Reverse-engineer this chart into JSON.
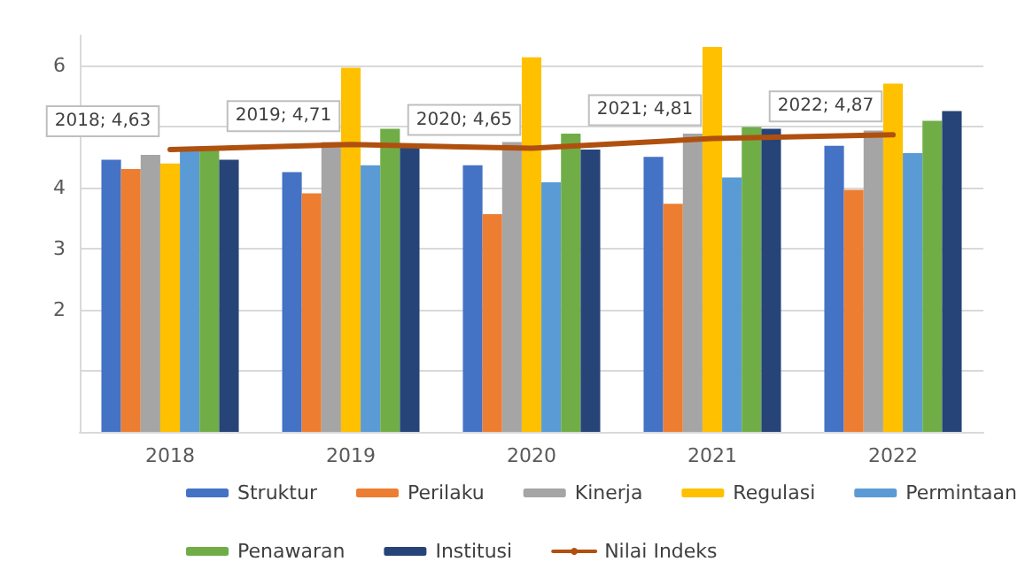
{
  "chart_data": {
    "type": "bar",
    "categories": [
      "2018",
      "2019",
      "2020",
      "2021",
      "2022"
    ],
    "series": [
      {
        "name": "Struktur",
        "color": "#4472c4",
        "values": [
          4.46,
          4.26,
          4.37,
          4.51,
          4.69
        ]
      },
      {
        "name": "Perilaku",
        "color": "#ed7d31",
        "values": [
          4.31,
          3.91,
          3.57,
          3.74,
          3.97
        ]
      },
      {
        "name": "Kinerja",
        "color": "#a5a5a5",
        "values": [
          4.54,
          4.75,
          4.75,
          4.89,
          4.94
        ]
      },
      {
        "name": "Regulasi",
        "color": "#ffc000",
        "values": [
          4.4,
          5.97,
          6.14,
          6.31,
          5.71
        ]
      },
      {
        "name": "Permintaan",
        "color": "#5b9bd5",
        "values": [
          4.65,
          4.37,
          4.09,
          4.17,
          4.57
        ]
      },
      {
        "name": "Penawaran",
        "color": "#70ad47",
        "values": [
          4.65,
          4.97,
          4.89,
          5.0,
          5.1
        ]
      },
      {
        "name": "Institusi",
        "color": "#264478",
        "values": [
          4.46,
          4.69,
          4.63,
          4.97,
          5.26
        ]
      },
      {
        "name": "Nilai Indeks",
        "type": "line",
        "color": "#b0500f",
        "values": [
          4.63,
          4.71,
          4.65,
          4.81,
          4.87
        ],
        "value_labels": [
          "2018; 4,63",
          "2019; 4,71",
          "2020; 4,65",
          "2021; 4,81",
          "2022; 4,87"
        ]
      }
    ],
    "ylim": [
      0,
      6.5
    ],
    "yticks": [
      {
        "value": 0,
        "label": null
      },
      {
        "value": 1,
        "label": null
      },
      2,
      3,
      4,
      {
        "value": 5,
        "label": null
      },
      6
    ],
    "grid": "y",
    "legend": "bottom",
    "marker": "none"
  }
}
